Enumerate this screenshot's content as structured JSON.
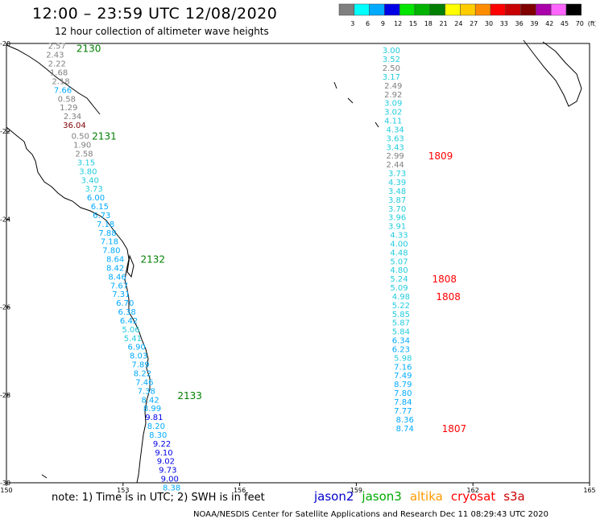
{
  "title": "12:00 – 23:59 UTC 12/08/2020",
  "subtitle": "12 hour collection of altimeter wave heights",
  "legend": {
    "unit": "(ft)",
    "bins": [
      {
        "label": "3",
        "color": "#7f7f7f"
      },
      {
        "label": "6",
        "color": "#00ffff"
      },
      {
        "label": "9",
        "color": "#00aaff"
      },
      {
        "label": "12",
        "color": "#0000e6"
      },
      {
        "label": "15",
        "color": "#00e600"
      },
      {
        "label": "18",
        "color": "#00b300"
      },
      {
        "label": "21",
        "color": "#007f00"
      },
      {
        "label": "24",
        "color": "#ffff00"
      },
      {
        "label": "27",
        "color": "#ffcc00"
      },
      {
        "label": "30",
        "color": "#ff8c00"
      },
      {
        "label": "33",
        "color": "#ff0000"
      },
      {
        "label": "36",
        "color": "#c80000"
      },
      {
        "label": "39",
        "color": "#800000"
      },
      {
        "label": "42",
        "color": "#aa00aa"
      },
      {
        "label": "45",
        "color": "#ff66ff"
      },
      {
        "label": "70",
        "color": "#000000"
      }
    ]
  },
  "axes": {
    "lon_range": [
      150,
      165
    ],
    "lat_range": [
      -30,
      -20
    ],
    "lon_ticks": [
      "150",
      "153",
      "156",
      "159",
      "162",
      "165"
    ],
    "lat_ticks": [
      "-20",
      "-22",
      "-24",
      "-26",
      "-28",
      "-30"
    ]
  },
  "tracks": [
    {
      "satellite": "jason3",
      "passes": [
        "2130",
        "2131",
        "2132",
        "2133"
      ],
      "points": [
        {
          "lon": 151.3,
          "lat": -20.05,
          "v": "2.57"
        },
        {
          "lon": 151.25,
          "lat": -20.25,
          "v": "2.43"
        },
        {
          "lon": 151.3,
          "lat": -20.45,
          "v": "2.22"
        },
        {
          "lon": 151.35,
          "lat": -20.65,
          "v": "1.68"
        },
        {
          "lon": 151.4,
          "lat": -20.85,
          "v": "2.18"
        },
        {
          "lon": 151.45,
          "lat": -21.05,
          "v": "7.66"
        },
        {
          "lon": 151.55,
          "lat": -21.25,
          "v": "0.58"
        },
        {
          "lon": 151.6,
          "lat": -21.45,
          "v": "1.29"
        },
        {
          "lon": 151.7,
          "lat": -21.65,
          "v": "2.34"
        },
        {
          "lon": 151.75,
          "lat": -21.85,
          "v": "36.04"
        },
        {
          "lon": 151.9,
          "lat": -22.1,
          "v": "0.50"
        },
        {
          "lon": 151.95,
          "lat": -22.3,
          "v": "1.90"
        },
        {
          "lon": 152.0,
          "lat": -22.5,
          "v": "2.58"
        },
        {
          "lon": 152.05,
          "lat": -22.7,
          "v": "3.15"
        },
        {
          "lon": 152.1,
          "lat": -22.9,
          "v": "3.80"
        },
        {
          "lon": 152.15,
          "lat": -23.1,
          "v": "3.40"
        },
        {
          "lon": 152.25,
          "lat": -23.3,
          "v": "3.73"
        },
        {
          "lon": 152.3,
          "lat": -23.5,
          "v": "6.00"
        },
        {
          "lon": 152.4,
          "lat": -23.7,
          "v": "6.15"
        },
        {
          "lon": 152.45,
          "lat": -23.9,
          "v": "6.73"
        },
        {
          "lon": 152.55,
          "lat": -24.1,
          "v": "7.18"
        },
        {
          "lon": 152.6,
          "lat": -24.3,
          "v": "7.88"
        },
        {
          "lon": 152.65,
          "lat": -24.5,
          "v": "7.18"
        },
        {
          "lon": 152.7,
          "lat": -24.7,
          "v": "7.80"
        },
        {
          "lon": 152.8,
          "lat": -24.9,
          "v": "8.64"
        },
        {
          "lon": 152.8,
          "lat": -25.1,
          "v": "8.42"
        },
        {
          "lon": 152.85,
          "lat": -25.3,
          "v": "8.46"
        },
        {
          "lon": 152.9,
          "lat": -25.5,
          "v": "7.67"
        },
        {
          "lon": 152.95,
          "lat": -25.7,
          "v": "7.31"
        },
        {
          "lon": 153.05,
          "lat": -25.9,
          "v": "6.70"
        },
        {
          "lon": 153.1,
          "lat": -26.1,
          "v": "6.38"
        },
        {
          "lon": 153.15,
          "lat": -26.3,
          "v": "6.42"
        },
        {
          "lon": 153.2,
          "lat": -26.5,
          "v": "5.06"
        },
        {
          "lon": 153.25,
          "lat": -26.7,
          "v": "5.41"
        },
        {
          "lon": 153.35,
          "lat": -26.9,
          "v": "6.90"
        },
        {
          "lon": 153.4,
          "lat": -27.1,
          "v": "8.03"
        },
        {
          "lon": 153.45,
          "lat": -27.3,
          "v": "7.89"
        },
        {
          "lon": 153.5,
          "lat": -27.5,
          "v": "8.22"
        },
        {
          "lon": 153.55,
          "lat": -27.7,
          "v": "7.46"
        },
        {
          "lon": 153.6,
          "lat": -27.9,
          "v": "7.38"
        },
        {
          "lon": 153.7,
          "lat": -28.1,
          "v": "8.42"
        },
        {
          "lon": 153.75,
          "lat": -28.3,
          "v": "8.99"
        },
        {
          "lon": 153.8,
          "lat": -28.5,
          "v": "9.81"
        },
        {
          "lon": 153.85,
          "lat": -28.7,
          "v": "8.20"
        },
        {
          "lon": 153.9,
          "lat": -28.9,
          "v": "8.30"
        },
        {
          "lon": 154.0,
          "lat": -29.1,
          "v": "9.22"
        },
        {
          "lon": 154.05,
          "lat": -29.3,
          "v": "9.10"
        },
        {
          "lon": 154.1,
          "lat": -29.5,
          "v": "9.02"
        },
        {
          "lon": 154.15,
          "lat": -29.7,
          "v": "9.73"
        },
        {
          "lon": 154.2,
          "lat": -29.9,
          "v": "9.00"
        },
        {
          "lon": 154.25,
          "lat": -30.1,
          "v": "8.38"
        }
      ]
    },
    {
      "satellite": "cryosat",
      "passes": [
        "1809",
        "1808",
        "1808",
        "1807"
      ],
      "points": [
        {
          "lon": 159.9,
          "lat": -20.15,
          "v": "3.00"
        },
        {
          "lon": 159.9,
          "lat": -20.35,
          "v": "3.52"
        },
        {
          "lon": 159.9,
          "lat": -20.55,
          "v": "2.50"
        },
        {
          "lon": 159.9,
          "lat": -20.75,
          "v": "3.17"
        },
        {
          "lon": 159.95,
          "lat": -20.95,
          "v": "2.49"
        },
        {
          "lon": 159.95,
          "lat": -21.15,
          "v": "2.92"
        },
        {
          "lon": 159.95,
          "lat": -21.35,
          "v": "3.09"
        },
        {
          "lon": 159.95,
          "lat": -21.55,
          "v": "3.02"
        },
        {
          "lon": 159.95,
          "lat": -21.75,
          "v": "4.11"
        },
        {
          "lon": 160.0,
          "lat": -21.95,
          "v": "4.34"
        },
        {
          "lon": 160.0,
          "lat": -22.15,
          "v": "3.63"
        },
        {
          "lon": 160.0,
          "lat": -22.35,
          "v": "3.43"
        },
        {
          "lon": 160.0,
          "lat": -22.55,
          "v": "2.99"
        },
        {
          "lon": 160.0,
          "lat": -22.75,
          "v": "2.44"
        },
        {
          "lon": 160.05,
          "lat": -22.95,
          "v": "3.73"
        },
        {
          "lon": 160.05,
          "lat": -23.15,
          "v": "4.39"
        },
        {
          "lon": 160.05,
          "lat": -23.35,
          "v": "3.48"
        },
        {
          "lon": 160.05,
          "lat": -23.55,
          "v": "3.87"
        },
        {
          "lon": 160.05,
          "lat": -23.75,
          "v": "3.70"
        },
        {
          "lon": 160.05,
          "lat": -23.95,
          "v": "3.96"
        },
        {
          "lon": 160.05,
          "lat": -24.15,
          "v": "3.91"
        },
        {
          "lon": 160.1,
          "lat": -24.35,
          "v": "4.33"
        },
        {
          "lon": 160.1,
          "lat": -24.55,
          "v": "4.00"
        },
        {
          "lon": 160.1,
          "lat": -24.75,
          "v": "4.48"
        },
        {
          "lon": 160.1,
          "lat": -24.95,
          "v": "5.07"
        },
        {
          "lon": 160.1,
          "lat": -25.15,
          "v": "4.80"
        },
        {
          "lon": 160.1,
          "lat": -25.35,
          "v": "5.24"
        },
        {
          "lon": 160.1,
          "lat": -25.55,
          "v": "5.09"
        },
        {
          "lon": 160.15,
          "lat": -25.75,
          "v": "4.98"
        },
        {
          "lon": 160.15,
          "lat": -25.95,
          "v": "5.22"
        },
        {
          "lon": 160.15,
          "lat": -26.15,
          "v": "5.85"
        },
        {
          "lon": 160.15,
          "lat": -26.35,
          "v": "5.87"
        },
        {
          "lon": 160.15,
          "lat": -26.55,
          "v": "5.84"
        },
        {
          "lon": 160.15,
          "lat": -26.75,
          "v": "6.34"
        },
        {
          "lon": 160.15,
          "lat": -26.95,
          "v": "6.23"
        },
        {
          "lon": 160.2,
          "lat": -27.15,
          "v": "5.98"
        },
        {
          "lon": 160.2,
          "lat": -27.35,
          "v": "7.16"
        },
        {
          "lon": 160.2,
          "lat": -27.55,
          "v": "7.49"
        },
        {
          "lon": 160.2,
          "lat": -27.75,
          "v": "8.79"
        },
        {
          "lon": 160.2,
          "lat": -27.95,
          "v": "7.80"
        },
        {
          "lon": 160.2,
          "lat": -28.15,
          "v": "7.84"
        },
        {
          "lon": 160.2,
          "lat": -28.35,
          "v": "7.77"
        },
        {
          "lon": 160.25,
          "lat": -28.55,
          "v": "8.36"
        },
        {
          "lon": 160.25,
          "lat": -28.75,
          "v": "8.74"
        }
      ]
    }
  ],
  "pass_labels": [
    {
      "text": "2130",
      "lon": 151.8,
      "lat": -20.1,
      "color": "#007f00"
    },
    {
      "text": "2131",
      "lon": 152.2,
      "lat": -22.1,
      "color": "#007f00"
    },
    {
      "text": "2132",
      "lon": 153.45,
      "lat": -24.9,
      "color": "#007f00"
    },
    {
      "text": "2133",
      "lon": 154.4,
      "lat": -28.0,
      "color": "#007f00"
    },
    {
      "text": "1809",
      "lon": 160.85,
      "lat": -22.55,
      "color": "#ff0000"
    },
    {
      "text": "1808",
      "lon": 160.95,
      "lat": -25.35,
      "color": "#ff0000"
    },
    {
      "text": "1808",
      "lon": 161.05,
      "lat": -25.75,
      "color": "#ff0000"
    },
    {
      "text": "1807",
      "lon": 161.2,
      "lat": -28.75,
      "color": "#ff0000"
    }
  ],
  "note": "note:  1) Time is in UTC;  2) SWH is in feet",
  "satellites": [
    {
      "name": "jason2",
      "color": "#0000cc"
    },
    {
      "name": "jason3",
      "color": "#00aa00"
    },
    {
      "name": "altika",
      "color": "#ff9900"
    },
    {
      "name": "cryosat",
      "color": "#ff0000"
    },
    {
      "name": "s3a",
      "color": "#cc0000"
    }
  ],
  "credit": "NOAA/NESDIS Center for Satellite Applications and Research    Dec 11 08:29:43 UTC 2020"
}
